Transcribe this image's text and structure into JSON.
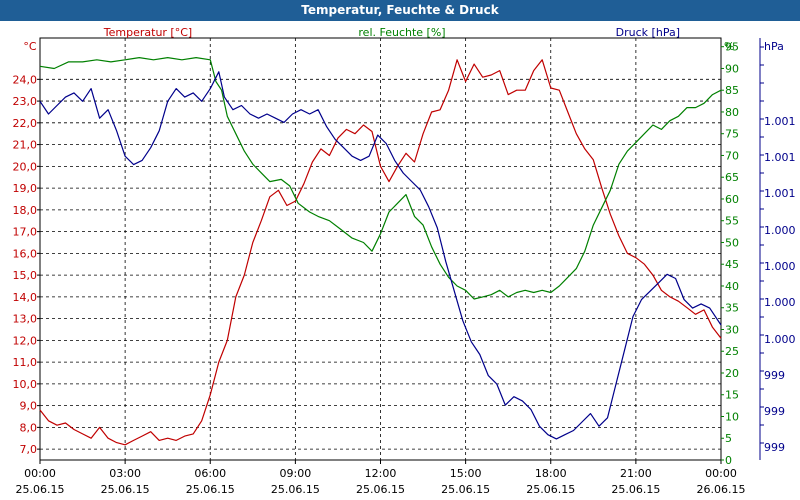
{
  "chart_data": {
    "type": "line",
    "title": "Temperatur, Feuchte & Druck",
    "x_ticks": [
      {
        "time": "00:00",
        "date": "25.06.15"
      },
      {
        "time": "03:00",
        "date": "25.06.15"
      },
      {
        "time": "06:00",
        "date": "25.06.15"
      },
      {
        "time": "09:00",
        "date": "25.06.15"
      },
      {
        "time": "12:00",
        "date": "25.06.15"
      },
      {
        "time": "15:00",
        "date": "25.06.15"
      },
      {
        "time": "18:00",
        "date": "25.06.15"
      },
      {
        "time": "21:00",
        "date": "25.06.15"
      },
      {
        "time": "00:00",
        "date": "26.06.15"
      }
    ],
    "xlim_hours": [
      0,
      24
    ],
    "axes": {
      "temperature": {
        "label": "Temperatur [°C]",
        "unit": "°C",
        "range": [
          6.5,
          25.9
        ],
        "ticks": [
          "7,0",
          "8,0",
          "9,0",
          "10,0",
          "11,0",
          "12,0",
          "13,0",
          "14,0",
          "15,0",
          "16,0",
          "17,0",
          "18,0",
          "19,0",
          "20,0",
          "21,0",
          "22,0",
          "23,0",
          "24,0"
        ],
        "color": "#c00000"
      },
      "humidity": {
        "label": "rel. Feuchte [%]",
        "unit": "%",
        "range": [
          0,
          97
        ],
        "ticks": [
          "0",
          "5",
          "10",
          "15",
          "20",
          "25",
          "30",
          "35",
          "40",
          "45",
          "50",
          "55",
          "60",
          "65",
          "70",
          "75",
          "80",
          "85",
          "90",
          "95"
        ],
        "color": "#008000"
      },
      "pressure": {
        "label": "Druck [hPa]",
        "unit": "hPa",
        "ticks": [
          "999",
          "999",
          "999",
          "1.000",
          "1.000",
          "1.000",
          "1.000",
          "1.001",
          "1.001",
          "1.001"
        ],
        "color": "#00008b"
      }
    },
    "series": [
      {
        "name": "Temperatur",
        "axis": "temperature",
        "color": "#c00000",
        "points": [
          [
            0,
            8.8
          ],
          [
            0.3,
            8.3
          ],
          [
            0.6,
            8.1
          ],
          [
            0.9,
            8.2
          ],
          [
            1.2,
            7.9
          ],
          [
            1.5,
            7.7
          ],
          [
            1.8,
            7.5
          ],
          [
            2.1,
            8.0
          ],
          [
            2.4,
            7.5
          ],
          [
            2.7,
            7.3
          ],
          [
            3.0,
            7.2
          ],
          [
            3.3,
            7.4
          ],
          [
            3.6,
            7.6
          ],
          [
            3.9,
            7.8
          ],
          [
            4.2,
            7.4
          ],
          [
            4.5,
            7.5
          ],
          [
            4.8,
            7.4
          ],
          [
            5.1,
            7.6
          ],
          [
            5.4,
            7.7
          ],
          [
            5.7,
            8.3
          ],
          [
            6.0,
            9.5
          ],
          [
            6.3,
            11.0
          ],
          [
            6.6,
            12.0
          ],
          [
            6.9,
            14.0
          ],
          [
            7.2,
            15.0
          ],
          [
            7.5,
            16.5
          ],
          [
            7.8,
            17.5
          ],
          [
            8.1,
            18.6
          ],
          [
            8.4,
            18.9
          ],
          [
            8.7,
            18.2
          ],
          [
            9.0,
            18.4
          ],
          [
            9.3,
            19.2
          ],
          [
            9.6,
            20.2
          ],
          [
            9.9,
            20.8
          ],
          [
            10.2,
            20.5
          ],
          [
            10.5,
            21.3
          ],
          [
            10.8,
            21.7
          ],
          [
            11.1,
            21.5
          ],
          [
            11.4,
            21.9
          ],
          [
            11.7,
            21.6
          ],
          [
            12.0,
            20.0
          ],
          [
            12.3,
            19.3
          ],
          [
            12.6,
            20.0
          ],
          [
            12.9,
            20.6
          ],
          [
            13.2,
            20.2
          ],
          [
            13.5,
            21.5
          ],
          [
            13.8,
            22.5
          ],
          [
            14.1,
            22.6
          ],
          [
            14.4,
            23.5
          ],
          [
            14.7,
            24.9
          ],
          [
            15.0,
            23.9
          ],
          [
            15.3,
            24.7
          ],
          [
            15.6,
            24.1
          ],
          [
            15.9,
            24.2
          ],
          [
            16.2,
            24.4
          ],
          [
            16.5,
            23.3
          ],
          [
            16.8,
            23.5
          ],
          [
            17.1,
            23.5
          ],
          [
            17.4,
            24.4
          ],
          [
            17.7,
            24.9
          ],
          [
            18.0,
            23.6
          ],
          [
            18.3,
            23.5
          ],
          [
            18.6,
            22.5
          ],
          [
            18.9,
            21.5
          ],
          [
            19.2,
            20.8
          ],
          [
            19.5,
            20.3
          ],
          [
            19.8,
            19.0
          ],
          [
            20.1,
            17.8
          ],
          [
            20.4,
            16.8
          ],
          [
            20.7,
            16.0
          ],
          [
            21.0,
            15.8
          ],
          [
            21.3,
            15.5
          ],
          [
            21.6,
            15.0
          ],
          [
            21.9,
            14.3
          ],
          [
            22.2,
            14.0
          ],
          [
            22.5,
            13.8
          ],
          [
            22.8,
            13.5
          ],
          [
            23.1,
            13.2
          ],
          [
            23.4,
            13.4
          ],
          [
            23.7,
            12.6
          ],
          [
            24.0,
            12.1
          ]
        ]
      },
      {
        "name": "rel. Feuchte",
        "axis": "humidity",
        "color": "#008000",
        "points": [
          [
            0,
            90.5
          ],
          [
            0.5,
            90.0
          ],
          [
            1.0,
            91.5
          ],
          [
            1.5,
            91.5
          ],
          [
            2.0,
            92.0
          ],
          [
            2.5,
            91.5
          ],
          [
            3.0,
            92.0
          ],
          [
            3.5,
            92.5
          ],
          [
            4.0,
            92.0
          ],
          [
            4.5,
            92.5
          ],
          [
            5.0,
            92.0
          ],
          [
            5.5,
            92.5
          ],
          [
            6.0,
            92.0
          ],
          [
            6.2,
            87.0
          ],
          [
            6.4,
            85.0
          ],
          [
            6.6,
            79.0
          ],
          [
            6.9,
            75.0
          ],
          [
            7.2,
            71.0
          ],
          [
            7.5,
            68.0
          ],
          [
            7.8,
            66.0
          ],
          [
            8.1,
            64.0
          ],
          [
            8.5,
            64.5
          ],
          [
            8.8,
            63.0
          ],
          [
            9.1,
            59.0
          ],
          [
            9.5,
            57.0
          ],
          [
            9.8,
            56.0
          ],
          [
            10.2,
            55.0
          ],
          [
            10.6,
            53.0
          ],
          [
            11.0,
            51.0
          ],
          [
            11.4,
            50.0
          ],
          [
            11.7,
            48.0
          ],
          [
            12.0,
            52.0
          ],
          [
            12.3,
            57.0
          ],
          [
            12.6,
            59.0
          ],
          [
            12.9,
            61.0
          ],
          [
            13.2,
            56.0
          ],
          [
            13.5,
            54.0
          ],
          [
            13.8,
            49.0
          ],
          [
            14.1,
            45.0
          ],
          [
            14.4,
            42.0
          ],
          [
            14.7,
            40.0
          ],
          [
            15.0,
            39.0
          ],
          [
            15.3,
            37.0
          ],
          [
            15.6,
            37.5
          ],
          [
            15.9,
            38.0
          ],
          [
            16.2,
            39.0
          ],
          [
            16.5,
            37.5
          ],
          [
            16.8,
            38.5
          ],
          [
            17.1,
            39.0
          ],
          [
            17.4,
            38.5
          ],
          [
            17.7,
            39.0
          ],
          [
            18.0,
            38.5
          ],
          [
            18.3,
            40.0
          ],
          [
            18.6,
            42.0
          ],
          [
            18.9,
            44.0
          ],
          [
            19.2,
            48.0
          ],
          [
            19.5,
            54.0
          ],
          [
            19.8,
            58.0
          ],
          [
            20.1,
            62.0
          ],
          [
            20.4,
            68.0
          ],
          [
            20.7,
            71.0
          ],
          [
            21.0,
            73.0
          ],
          [
            21.3,
            75.0
          ],
          [
            21.6,
            77.0
          ],
          [
            21.9,
            76.0
          ],
          [
            22.2,
            78.0
          ],
          [
            22.5,
            79.0
          ],
          [
            22.8,
            81.0
          ],
          [
            23.1,
            81.0
          ],
          [
            23.4,
            82.0
          ],
          [
            23.7,
            84.0
          ],
          [
            24.0,
            85.0
          ]
        ]
      },
      {
        "name": "Druck",
        "axis": "pressure",
        "color": "#00008b",
        "axis_units": "relative position (0 = bottom, 1 = top of plot)",
        "points": [
          [
            0,
            0.85
          ],
          [
            0.3,
            0.82
          ],
          [
            0.6,
            0.84
          ],
          [
            0.9,
            0.86
          ],
          [
            1.2,
            0.87
          ],
          [
            1.5,
            0.85
          ],
          [
            1.8,
            0.88
          ],
          [
            2.1,
            0.81
          ],
          [
            2.4,
            0.83
          ],
          [
            2.7,
            0.78
          ],
          [
            3.0,
            0.72
          ],
          [
            3.3,
            0.7
          ],
          [
            3.6,
            0.71
          ],
          [
            3.9,
            0.74
          ],
          [
            4.2,
            0.78
          ],
          [
            4.5,
            0.85
          ],
          [
            4.8,
            0.88
          ],
          [
            5.1,
            0.86
          ],
          [
            5.4,
            0.87
          ],
          [
            5.7,
            0.85
          ],
          [
            6.0,
            0.88
          ],
          [
            6.3,
            0.92
          ],
          [
            6.5,
            0.86
          ],
          [
            6.8,
            0.83
          ],
          [
            7.1,
            0.84
          ],
          [
            7.4,
            0.82
          ],
          [
            7.7,
            0.81
          ],
          [
            8.0,
            0.82
          ],
          [
            8.3,
            0.81
          ],
          [
            8.6,
            0.8
          ],
          [
            8.9,
            0.82
          ],
          [
            9.2,
            0.83
          ],
          [
            9.5,
            0.82
          ],
          [
            9.8,
            0.83
          ],
          [
            10.1,
            0.79
          ],
          [
            10.4,
            0.76
          ],
          [
            10.7,
            0.74
          ],
          [
            11.0,
            0.72
          ],
          [
            11.3,
            0.71
          ],
          [
            11.6,
            0.72
          ],
          [
            11.9,
            0.77
          ],
          [
            12.2,
            0.75
          ],
          [
            12.5,
            0.71
          ],
          [
            12.8,
            0.68
          ],
          [
            13.1,
            0.66
          ],
          [
            13.4,
            0.64
          ],
          [
            13.7,
            0.6
          ],
          [
            14.0,
            0.55
          ],
          [
            14.3,
            0.47
          ],
          [
            14.6,
            0.4
          ],
          [
            14.9,
            0.33
          ],
          [
            15.2,
            0.28
          ],
          [
            15.5,
            0.25
          ],
          [
            15.8,
            0.2
          ],
          [
            16.1,
            0.18
          ],
          [
            16.4,
            0.13
          ],
          [
            16.7,
            0.15
          ],
          [
            17.0,
            0.14
          ],
          [
            17.3,
            0.12
          ],
          [
            17.6,
            0.08
          ],
          [
            17.9,
            0.06
          ],
          [
            18.2,
            0.05
          ],
          [
            18.5,
            0.06
          ],
          [
            18.8,
            0.07
          ],
          [
            19.1,
            0.09
          ],
          [
            19.4,
            0.11
          ],
          [
            19.7,
            0.08
          ],
          [
            20.0,
            0.1
          ],
          [
            20.3,
            0.18
          ],
          [
            20.6,
            0.26
          ],
          [
            20.9,
            0.34
          ],
          [
            21.2,
            0.38
          ],
          [
            21.5,
            0.4
          ],
          [
            21.8,
            0.42
          ],
          [
            22.1,
            0.44
          ],
          [
            22.4,
            0.43
          ],
          [
            22.7,
            0.38
          ],
          [
            23.0,
            0.36
          ],
          [
            23.3,
            0.37
          ],
          [
            23.6,
            0.36
          ],
          [
            24.0,
            0.32
          ]
        ]
      }
    ]
  }
}
